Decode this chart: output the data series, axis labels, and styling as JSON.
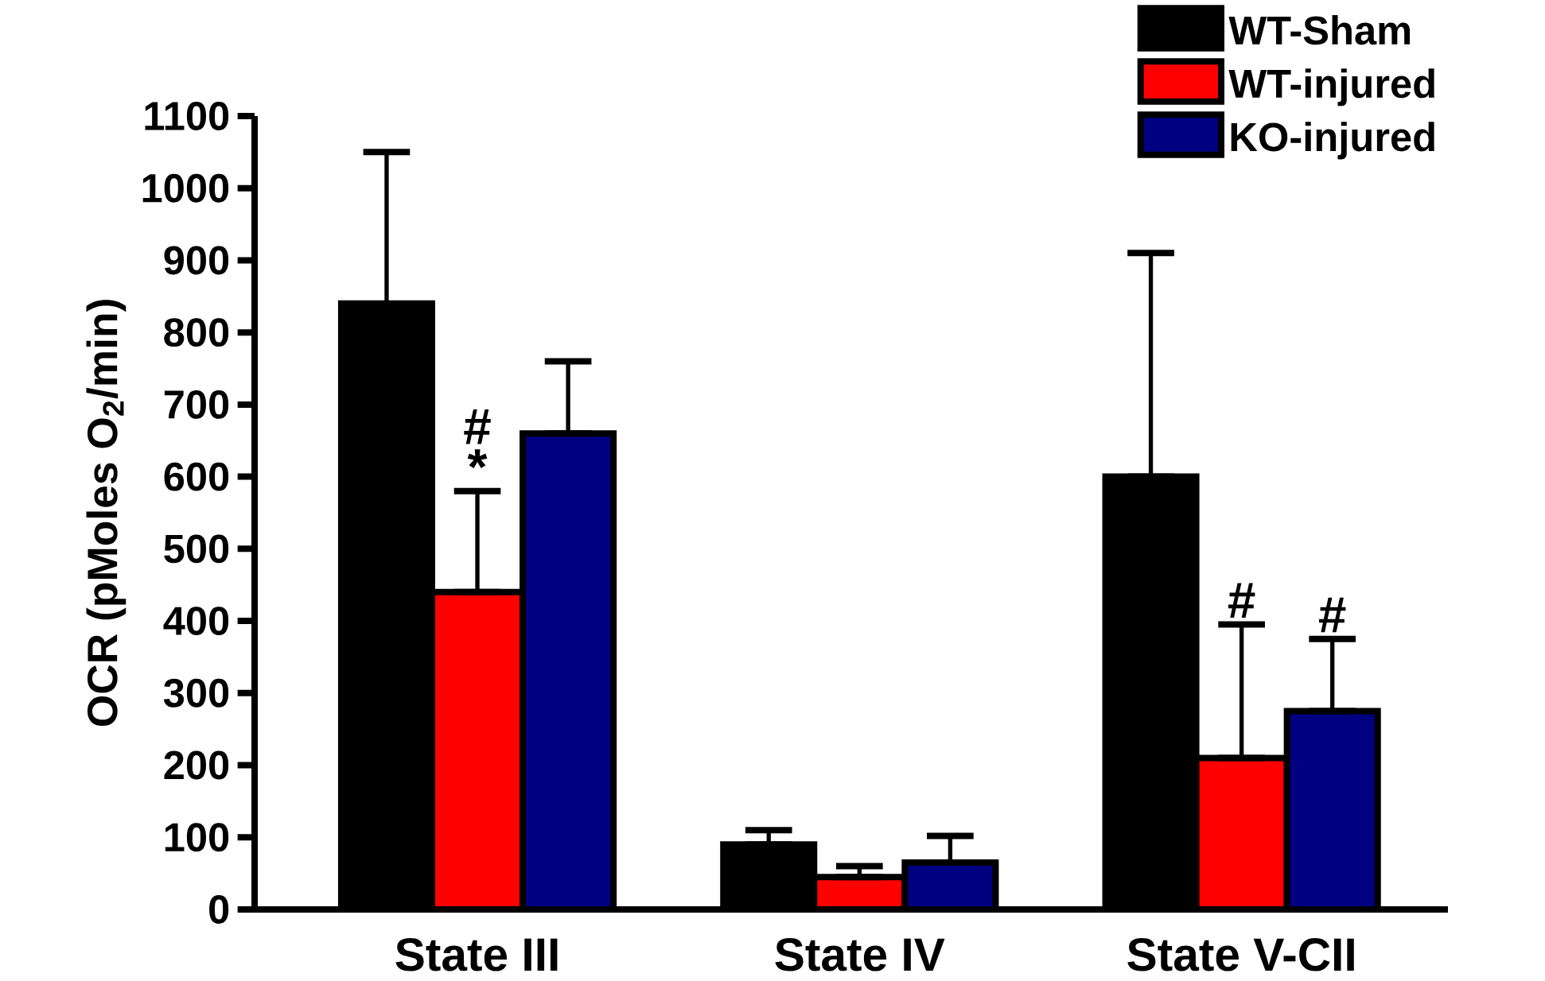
{
  "chart_data": {
    "type": "bar",
    "ylabel": "OCR (pMoles O$_{2}$/min)",
    "categories": [
      "State III",
      "State IV",
      "State V-CII"
    ],
    "series": [
      {
        "name": "WT-Sham",
        "color": "#000000",
        "values": [
          840,
          90,
          600
        ],
        "errors": [
          [
            840,
            1050
          ],
          [
            90,
            110
          ],
          [
            600,
            910
          ]
        ]
      },
      {
        "name": "WT-injured",
        "color": "#ff0000",
        "values": [
          440,
          45,
          210
        ],
        "errors": [
          [
            440,
            580
          ],
          [
            45,
            60
          ],
          [
            210,
            395
          ]
        ]
      },
      {
        "name": "KO-injured",
        "color": "#000080",
        "values": [
          660,
          65,
          275
        ],
        "errors": [
          [
            660,
            760
          ],
          [
            65,
            102
          ],
          [
            275,
            375
          ]
        ]
      }
    ],
    "ylim": [
      0,
      1100
    ],
    "yticks": [
      0,
      100,
      200,
      300,
      400,
      500,
      600,
      700,
      800,
      900,
      1000,
      1100
    ],
    "annotations": [
      {
        "text": "*",
        "x": "State III",
        "y": 440
      },
      {
        "text": "#",
        "x": "State III",
        "y": 580
      },
      {
        "text": "#",
        "x": "State V-CII",
        "y": 210
      },
      {
        "text": "#",
        "x": "State V-CII",
        "y": 275
      }
    ],
    "grid": false,
    "legend": "top right"
  }
}
